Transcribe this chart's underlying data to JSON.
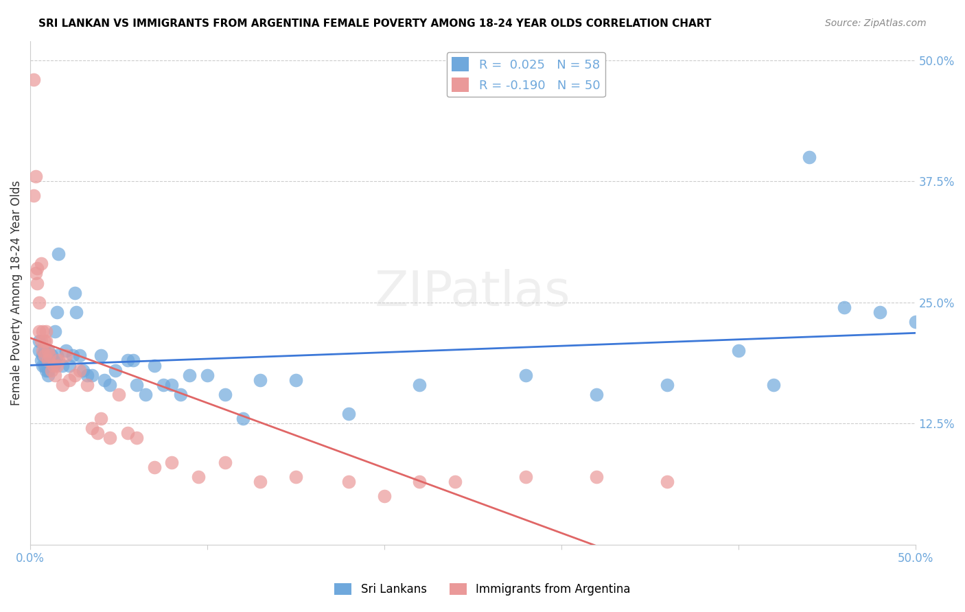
{
  "title": "SRI LANKAN VS IMMIGRANTS FROM ARGENTINA FEMALE POVERTY AMONG 18-24 YEAR OLDS CORRELATION CHART",
  "source": "Source: ZipAtlas.com",
  "ylabel": "Female Poverty Among 18-24 Year Olds",
  "right_yticks": [
    "50.0%",
    "37.5%",
    "25.0%",
    "12.5%"
  ],
  "right_ytick_vals": [
    0.5,
    0.375,
    0.25,
    0.125
  ],
  "blue_color": "#6fa8dc",
  "pink_color": "#ea9999",
  "blue_line_color": "#3c78d8",
  "pink_line_color": "#e06666",
  "tick_text_color": "#6fa8dc",
  "title_color": "#000000",
  "watermark": "ZIPatlas",
  "sri_lankans_x": [
    0.005,
    0.005,
    0.006,
    0.007,
    0.007,
    0.008,
    0.008,
    0.009,
    0.01,
    0.01,
    0.01,
    0.012,
    0.012,
    0.013,
    0.013,
    0.014,
    0.015,
    0.015,
    0.016,
    0.018,
    0.02,
    0.022,
    0.024,
    0.025,
    0.026,
    0.028,
    0.03,
    0.032,
    0.035,
    0.04,
    0.042,
    0.045,
    0.048,
    0.055,
    0.058,
    0.06,
    0.065,
    0.07,
    0.075,
    0.08,
    0.085,
    0.09,
    0.1,
    0.11,
    0.12,
    0.13,
    0.15,
    0.18,
    0.22,
    0.28,
    0.32,
    0.36,
    0.4,
    0.42,
    0.44,
    0.46,
    0.48,
    0.5
  ],
  "sri_lankans_y": [
    0.2,
    0.21,
    0.19,
    0.185,
    0.195,
    0.2,
    0.185,
    0.18,
    0.175,
    0.18,
    0.2,
    0.185,
    0.195,
    0.19,
    0.185,
    0.22,
    0.195,
    0.24,
    0.3,
    0.185,
    0.2,
    0.185,
    0.195,
    0.26,
    0.24,
    0.195,
    0.18,
    0.175,
    0.175,
    0.195,
    0.17,
    0.165,
    0.18,
    0.19,
    0.19,
    0.165,
    0.155,
    0.185,
    0.165,
    0.165,
    0.155,
    0.175,
    0.175,
    0.155,
    0.13,
    0.17,
    0.17,
    0.135,
    0.165,
    0.175,
    0.155,
    0.165,
    0.2,
    0.165,
    0.4,
    0.245,
    0.24,
    0.23
  ],
  "argentina_x": [
    0.002,
    0.002,
    0.003,
    0.003,
    0.004,
    0.004,
    0.005,
    0.005,
    0.006,
    0.006,
    0.007,
    0.007,
    0.008,
    0.008,
    0.009,
    0.009,
    0.01,
    0.01,
    0.011,
    0.012,
    0.013,
    0.014,
    0.015,
    0.016,
    0.018,
    0.02,
    0.022,
    0.025,
    0.028,
    0.032,
    0.035,
    0.038,
    0.04,
    0.045,
    0.05,
    0.055,
    0.06,
    0.07,
    0.08,
    0.095,
    0.11,
    0.13,
    0.15,
    0.18,
    0.2,
    0.22,
    0.24,
    0.28,
    0.32,
    0.36
  ],
  "argentina_y": [
    0.48,
    0.36,
    0.38,
    0.28,
    0.285,
    0.27,
    0.25,
    0.22,
    0.29,
    0.21,
    0.22,
    0.2,
    0.21,
    0.195,
    0.22,
    0.21,
    0.2,
    0.19,
    0.195,
    0.18,
    0.185,
    0.175,
    0.185,
    0.19,
    0.165,
    0.195,
    0.17,
    0.175,
    0.18,
    0.165,
    0.12,
    0.115,
    0.13,
    0.11,
    0.155,
    0.115,
    0.11,
    0.08,
    0.085,
    0.07,
    0.085,
    0.065,
    0.07,
    0.065,
    0.05,
    0.065,
    0.065,
    0.07,
    0.07,
    0.065
  ],
  "xlim": [
    0.0,
    0.5
  ],
  "ylim": [
    0.0,
    0.52
  ],
  "grid_color": "#cccccc",
  "background_color": "#ffffff"
}
